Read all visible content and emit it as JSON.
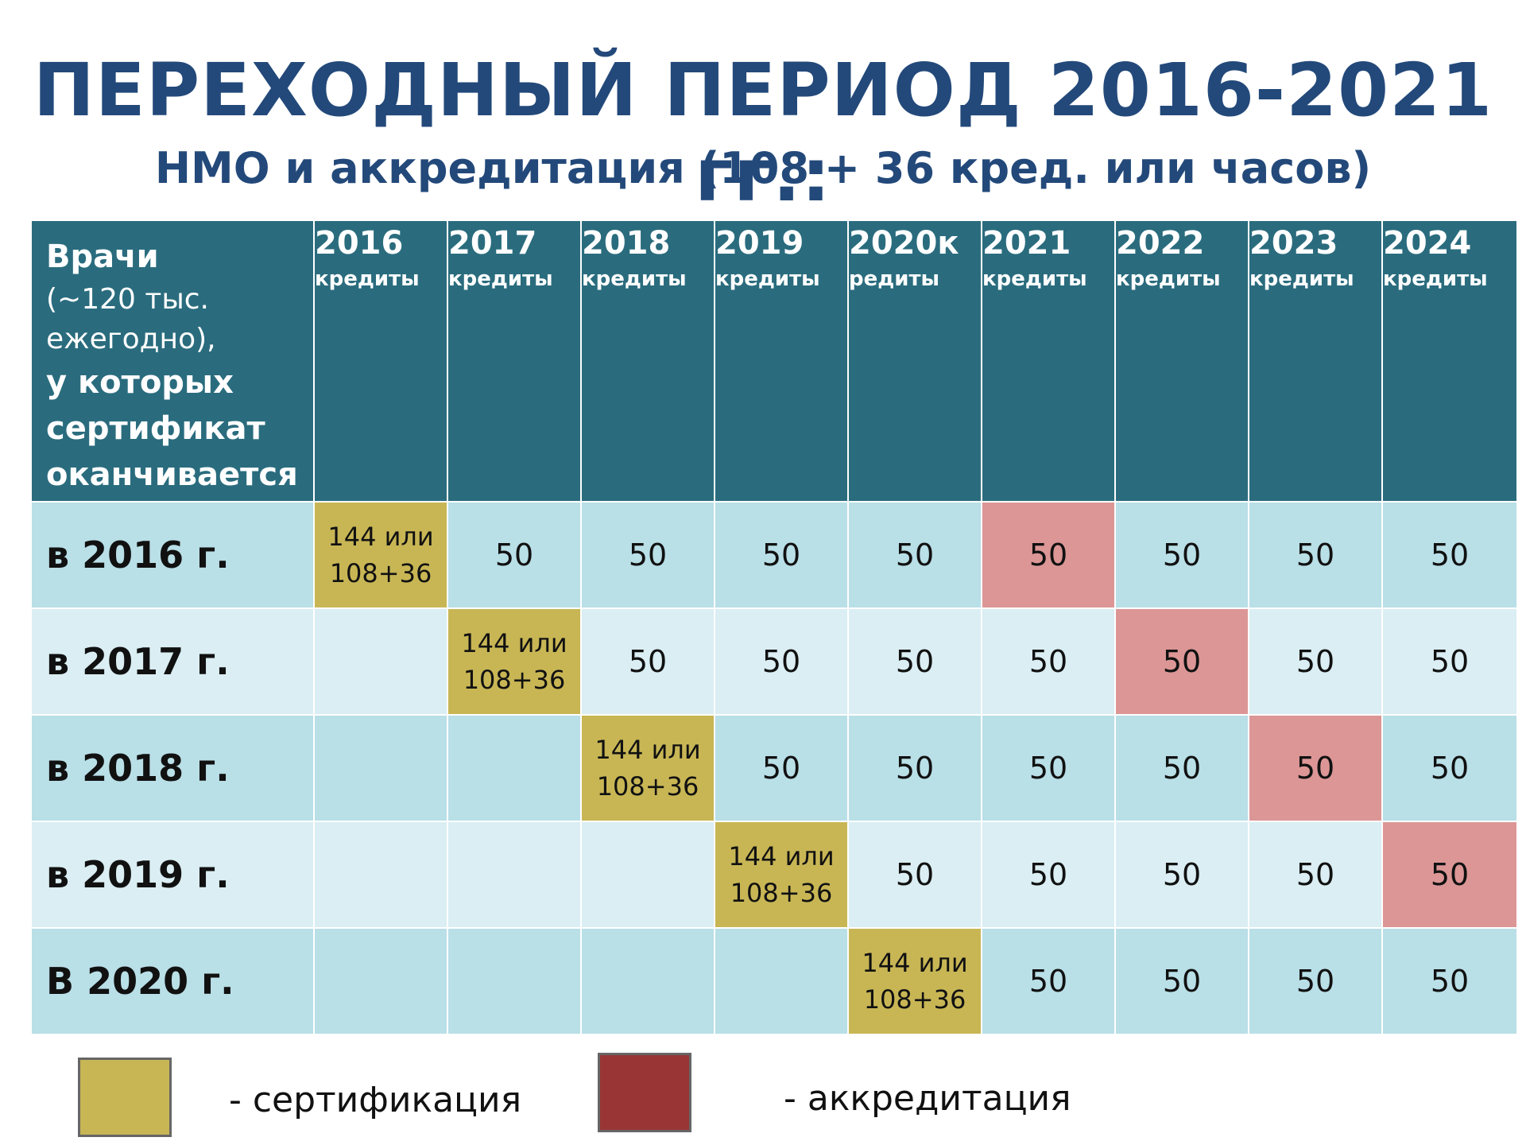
{
  "title": "ПЕРЕХОДНЫЙ ПЕРИОД 2016-2021 гг.:",
  "subtitle": "НМО и аккредитация (108 + 36 кред. или часов)",
  "header": {
    "first_col": {
      "line1": "Врачи",
      "line2": "(~120 тыс.",
      "line3": "ежегодно),",
      "line4": "у которых",
      "line5": "сертификат",
      "line6": "оканчивается"
    },
    "years": [
      {
        "year": "2016",
        "sub": "кредиты"
      },
      {
        "year": "2017",
        "sub": "кредиты"
      },
      {
        "year": "2018",
        "sub": "кредиты"
      },
      {
        "year": "2019",
        "sub": "кредиты"
      },
      {
        "year": "2020к",
        "sub": "редиты"
      },
      {
        "year": "2021",
        "sub": "кредиты"
      },
      {
        "year": "2022",
        "sub": "кредиты"
      },
      {
        "year": "2023",
        "sub": "кредиты"
      },
      {
        "year": "2024",
        "sub": "кредиты"
      }
    ]
  },
  "rows": [
    {
      "label": "в 2016 г.",
      "cells": [
        {
          "line1": "144 или",
          "line2": "108+36",
          "type": "cert"
        },
        {
          "line1": "50",
          "line2": "",
          "type": "plain"
        },
        {
          "line1": "50",
          "line2": "",
          "type": "plain"
        },
        {
          "line1": "50",
          "line2": "",
          "type": "plain"
        },
        {
          "line1": "50",
          "line2": "",
          "type": "plain"
        },
        {
          "line1": "50",
          "line2": "",
          "type": "accr"
        },
        {
          "line1": "50",
          "line2": "",
          "type": "plain"
        },
        {
          "line1": "50",
          "line2": "",
          "type": "plain"
        },
        {
          "line1": "50",
          "line2": "",
          "type": "plain"
        }
      ]
    },
    {
      "label": "в 2017 г.",
      "cells": [
        {
          "line1": "",
          "line2": "",
          "type": "plain"
        },
        {
          "line1": "144 или",
          "line2": "108+36",
          "type": "cert"
        },
        {
          "line1": "50",
          "line2": "",
          "type": "plain"
        },
        {
          "line1": "50",
          "line2": "",
          "type": "plain"
        },
        {
          "line1": "50",
          "line2": "",
          "type": "plain"
        },
        {
          "line1": "50",
          "line2": "",
          "type": "plain"
        },
        {
          "line1": "50",
          "line2": "",
          "type": "accr"
        },
        {
          "line1": "50",
          "line2": "",
          "type": "plain"
        },
        {
          "line1": "50",
          "line2": "",
          "type": "plain"
        }
      ]
    },
    {
      "label": "в 2018 г.",
      "cells": [
        {
          "line1": "",
          "line2": "",
          "type": "plain"
        },
        {
          "line1": "",
          "line2": "",
          "type": "plain"
        },
        {
          "line1": "144 или",
          "line2": "108+36",
          "type": "cert"
        },
        {
          "line1": "50",
          "line2": "",
          "type": "plain"
        },
        {
          "line1": "50",
          "line2": "",
          "type": "plain"
        },
        {
          "line1": "50",
          "line2": "",
          "type": "plain"
        },
        {
          "line1": "50",
          "line2": "",
          "type": "plain"
        },
        {
          "line1": "50",
          "line2": "",
          "type": "accr"
        },
        {
          "line1": "50",
          "line2": "",
          "type": "plain"
        }
      ]
    },
    {
      "label": "в 2019 г.",
      "cells": [
        {
          "line1": "",
          "line2": "",
          "type": "plain"
        },
        {
          "line1": "",
          "line2": "",
          "type": "plain"
        },
        {
          "line1": "",
          "line2": "",
          "type": "plain"
        },
        {
          "line1": "144 или",
          "line2": "108+36",
          "type": "cert"
        },
        {
          "line1": "50",
          "line2": "",
          "type": "plain"
        },
        {
          "line1": "50",
          "line2": "",
          "type": "plain"
        },
        {
          "line1": "50",
          "line2": "",
          "type": "plain"
        },
        {
          "line1": "50",
          "line2": "",
          "type": "plain"
        },
        {
          "line1": "50",
          "line2": "",
          "type": "accr"
        }
      ]
    },
    {
      "label": "В 2020 г.",
      "cells": [
        {
          "line1": "",
          "line2": "",
          "type": "plain"
        },
        {
          "line1": "",
          "line2": "",
          "type": "plain"
        },
        {
          "line1": "",
          "line2": "",
          "type": "plain"
        },
        {
          "line1": "",
          "line2": "",
          "type": "plain"
        },
        {
          "line1": "144 или",
          "line2": "108+36",
          "type": "cert"
        },
        {
          "line1": "50",
          "line2": "",
          "type": "plain"
        },
        {
          "line1": "50",
          "line2": "",
          "type": "plain"
        },
        {
          "line1": "50",
          "line2": "",
          "type": "plain"
        },
        {
          "line1": "50",
          "line2": "",
          "type": "plain"
        }
      ]
    }
  ],
  "legend": {
    "cert_label": "- сертификация",
    "accr_label": "- аккредитация",
    "cert_color": "#c8b655",
    "accr_color": "#9a3535"
  },
  "colors": {
    "title": "#23497a",
    "header_bg": "#2a6c7e",
    "row_dark": "#b9dfe7",
    "row_light": "#daeef3",
    "cert": "#c8b655",
    "accr": "#dc9696"
  }
}
